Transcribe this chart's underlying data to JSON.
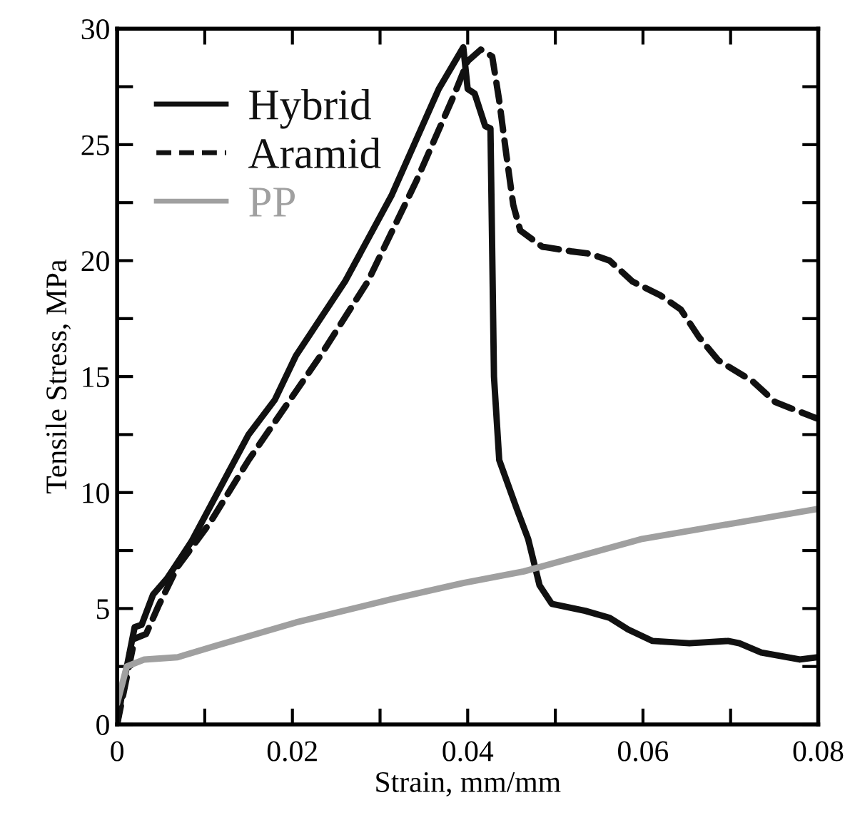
{
  "chart_data": {
    "type": "line",
    "xlabel": "Strain, mm/mm",
    "ylabel": "Tensile Stress, MPa",
    "xlim": [
      0,
      0.08
    ],
    "ylim": [
      0,
      30
    ],
    "xticks": [
      0,
      {
        "value": 0.01,
        "label": null
      },
      0.02,
      {
        "value": 0.03,
        "label": null
      },
      0.04,
      {
        "value": 0.05,
        "label": null
      },
      0.06,
      {
        "value": 0.07,
        "label": null
      },
      0.08
    ],
    "yticks": [
      0,
      {
        "value": 2.5,
        "label": null
      },
      5,
      {
        "value": 7.5,
        "label": null
      },
      10,
      {
        "value": 12.5,
        "label": null
      },
      15,
      {
        "value": 17.5,
        "label": null
      },
      20,
      {
        "value": 22.5,
        "label": null
      },
      25,
      {
        "value": 27.5,
        "label": null
      },
      30
    ],
    "grid": false,
    "legend": "top left",
    "marker": "none",
    "series": [
      {
        "name": "Hybrid",
        "color": "#111111",
        "line_style": "solid",
        "x": [
          0,
          0.0008,
          0.002,
          0.0028,
          0.0041,
          0.0057,
          0.0085,
          0.015,
          0.018,
          0.0204,
          0.026,
          0.0313,
          0.0367,
          0.0395,
          0.04,
          0.0408,
          0.042,
          0.0426,
          0.043,
          0.0436,
          0.0456,
          0.0469,
          0.0482,
          0.0496,
          0.0534,
          0.0562,
          0.0583,
          0.0611,
          0.0653,
          0.0697,
          0.071,
          0.0735,
          0.0779,
          0.08
        ],
        "values": [
          0,
          1.9,
          4.2,
          4.3,
          5.6,
          6.3,
          7.9,
          12.5,
          14.0,
          15.9,
          19.1,
          22.8,
          27.4,
          29.2,
          27.4,
          27.2,
          25.8,
          25.7,
          15.0,
          11.4,
          9.3,
          8.0,
          6.0,
          5.2,
          4.9,
          4.6,
          4.1,
          3.6,
          3.5,
          3.6,
          3.5,
          3.1,
          2.8,
          2.9
        ]
      },
      {
        "name": "Aramid",
        "color": "#111111",
        "line_style": "dashed",
        "x": [
          0,
          0.0007,
          0.002,
          0.0033,
          0.0047,
          0.0069,
          0.0106,
          0.015,
          0.0232,
          0.0286,
          0.0341,
          0.0384,
          0.04,
          0.0415,
          0.0428,
          0.0436,
          0.0444,
          0.0452,
          0.046,
          0.0485,
          0.0518,
          0.0539,
          0.0562,
          0.0588,
          0.062,
          0.0643,
          0.0664,
          0.0686,
          0.0725,
          0.0751,
          0.0798
        ],
        "values": [
          0,
          1.3,
          3.7,
          3.9,
          5.1,
          6.8,
          8.7,
          11.4,
          15.9,
          19.1,
          23.4,
          27.1,
          28.6,
          29.1,
          28.8,
          26.9,
          24.6,
          22.4,
          21.3,
          20.6,
          20.4,
          20.3,
          20.0,
          19.1,
          18.5,
          17.9,
          16.7,
          15.7,
          14.8,
          13.9,
          13.2
        ]
      },
      {
        "name": "PP",
        "color": "#a0a0a0",
        "line_style": "solid",
        "x": [
          0,
          0.0011,
          0.0031,
          0.0069,
          0.0113,
          0.0204,
          0.0313,
          0.0395,
          0.0464,
          0.0599,
          0.08
        ],
        "values": [
          0.9,
          2.5,
          2.8,
          2.9,
          3.4,
          4.4,
          5.4,
          6.1,
          6.6,
          8.0,
          9.3
        ]
      }
    ]
  }
}
